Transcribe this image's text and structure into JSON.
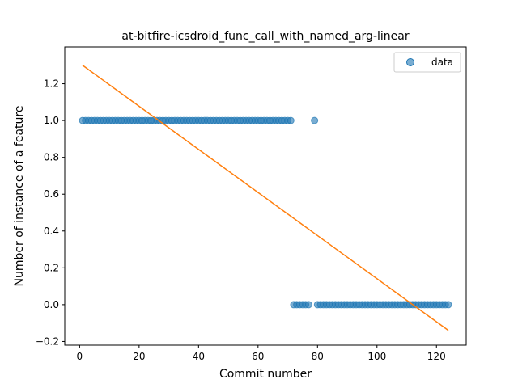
{
  "chart_data": {
    "type": "scatter",
    "title": "at-bitfire-icsdroid_func_call_with_named_arg-linear",
    "xlabel": "Commit number",
    "ylabel": "Number of instance of a feature",
    "xlim": [
      -5,
      130
    ],
    "ylim": [
      -0.22,
      1.4
    ],
    "xticks": [
      0,
      20,
      40,
      60,
      80,
      100,
      120
    ],
    "xtick_labels": [
      "0",
      "20",
      "40",
      "60",
      "80",
      "100",
      "120"
    ],
    "yticks": [
      -0.2,
      0.0,
      0.2,
      0.4,
      0.6,
      0.8,
      1.0,
      1.2
    ],
    "ytick_labels": [
      "−0.2",
      "0.0",
      "0.2",
      "0.4",
      "0.6",
      "0.8",
      "1.0",
      "1.2"
    ],
    "grid": false,
    "legend_position": "top-right",
    "series": [
      {
        "name": "data",
        "kind": "scatter",
        "color": "#1f77b4",
        "x": [
          1,
          2,
          3,
          4,
          5,
          6,
          7,
          8,
          9,
          10,
          11,
          12,
          13,
          14,
          15,
          16,
          17,
          18,
          19,
          20,
          21,
          22,
          23,
          24,
          25,
          26,
          27,
          28,
          29,
          30,
          31,
          32,
          33,
          34,
          35,
          36,
          37,
          38,
          39,
          40,
          41,
          42,
          43,
          44,
          45,
          46,
          47,
          48,
          49,
          50,
          51,
          52,
          53,
          54,
          55,
          56,
          57,
          58,
          59,
          60,
          61,
          62,
          63,
          64,
          65,
          66,
          67,
          68,
          69,
          70,
          71,
          72,
          73,
          74,
          75,
          76,
          77,
          79,
          80,
          81,
          82,
          83,
          84,
          85,
          86,
          87,
          88,
          89,
          90,
          91,
          92,
          93,
          94,
          95,
          96,
          97,
          98,
          99,
          100,
          101,
          102,
          103,
          104,
          105,
          106,
          107,
          108,
          109,
          110,
          111,
          112,
          113,
          114,
          115,
          116,
          117,
          118,
          119,
          120,
          121,
          122,
          123,
          124
        ],
        "y": [
          1,
          1,
          1,
          1,
          1,
          1,
          1,
          1,
          1,
          1,
          1,
          1,
          1,
          1,
          1,
          1,
          1,
          1,
          1,
          1,
          1,
          1,
          1,
          1,
          1,
          1,
          1,
          1,
          1,
          1,
          1,
          1,
          1,
          1,
          1,
          1,
          1,
          1,
          1,
          1,
          1,
          1,
          1,
          1,
          1,
          1,
          1,
          1,
          1,
          1,
          1,
          1,
          1,
          1,
          1,
          1,
          1,
          1,
          1,
          1,
          1,
          1,
          1,
          1,
          1,
          1,
          1,
          1,
          1,
          1,
          1,
          0,
          0,
          0,
          0,
          0,
          0,
          1,
          0,
          0,
          0,
          0,
          0,
          0,
          0,
          0,
          0,
          0,
          0,
          0,
          0,
          0,
          0,
          0,
          0,
          0,
          0,
          0,
          0,
          0,
          0,
          0,
          0,
          0,
          0,
          0,
          0,
          0,
          0,
          0,
          0,
          0,
          0,
          0,
          0,
          0,
          0,
          0,
          0,
          0,
          0,
          0,
          0
        ]
      },
      {
        "name": "",
        "kind": "line",
        "color": "#ff7f0e",
        "x": [
          1,
          124
        ],
        "y": [
          1.3,
          -0.14
        ]
      }
    ]
  }
}
